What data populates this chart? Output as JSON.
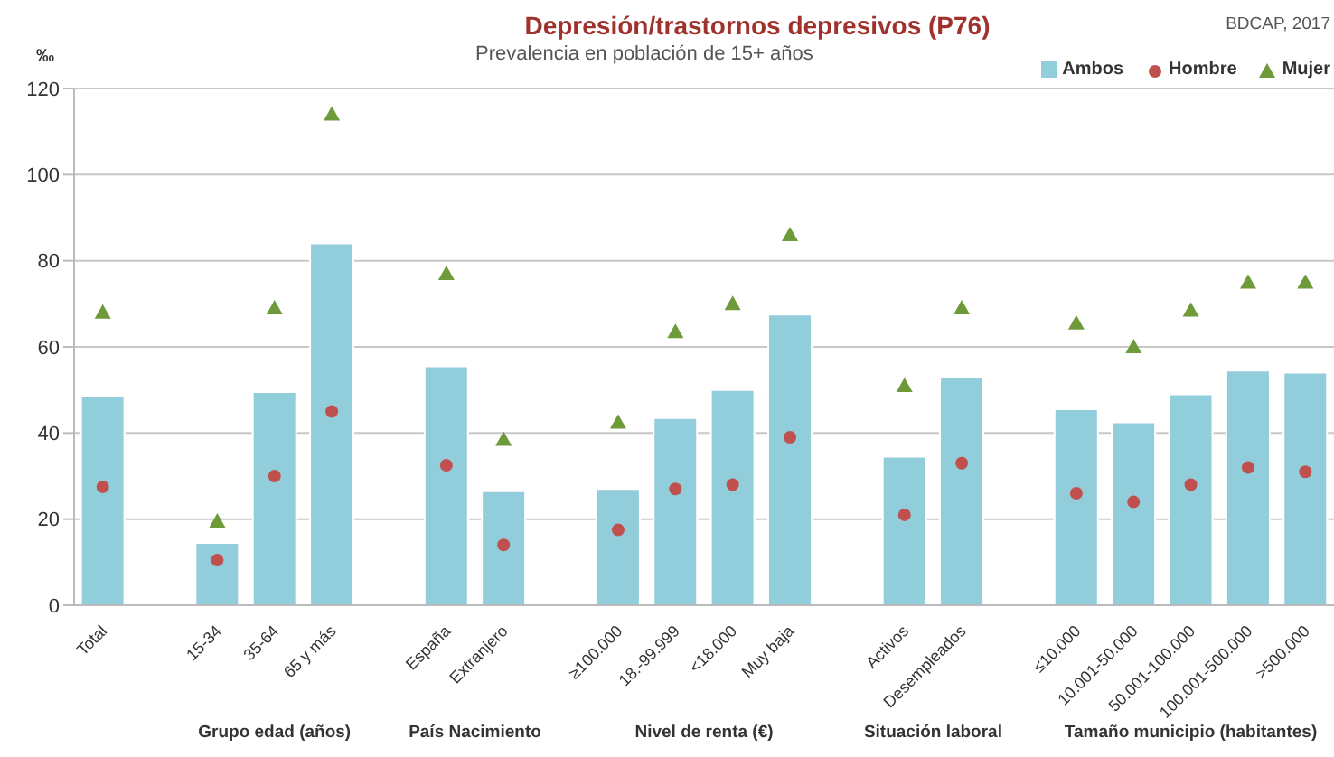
{
  "chart_data": {
    "type": "bar",
    "title": "Depresión/trastornos depresivos (P76)",
    "subtitle": "Prevalencia en población de 15+ años",
    "ylabel": "‰",
    "annotations": [
      "BDCAP, 2017",
      "Grupo edad (años)",
      "País Nacimiento",
      "Nivel de renta (€)",
      "Situación laboral",
      "Tamaño municipio (habitantes)"
    ],
    "categories": [
      "Total",
      null,
      "15-34",
      "35-64",
      "65 y más",
      null,
      "España",
      "Extranjero",
      null,
      "≥100.000",
      "18.-99.999",
      "<18.000",
      "Muy baja",
      null,
      "Activos",
      "Desempleados",
      null,
      "≤10.000",
      "10.001-50.000",
      "50.001-100.000",
      "100.001-500.000",
      ">500.000"
    ],
    "series": [
      {
        "name": "Ambos",
        "color": "#92cddc",
        "values": [
          48.5,
          null,
          14.5,
          49.5,
          84,
          null,
          55.5,
          26.5,
          null,
          27,
          43.5,
          50,
          67.5,
          null,
          34.5,
          53,
          null,
          45.5,
          42.5,
          49,
          54.5,
          54
        ]
      },
      {
        "name": "Hombre",
        "type": "scatter",
        "marker": "circle",
        "color": "#c0504d",
        "values": [
          27.5,
          null,
          10.5,
          30,
          45,
          null,
          32.5,
          14,
          null,
          17.5,
          27,
          28,
          39,
          null,
          21,
          33,
          null,
          26,
          24,
          28,
          32,
          31
        ]
      },
      {
        "name": "Mujer",
        "type": "scatter",
        "marker": "triangle",
        "color": "#6e9a3a",
        "values": [
          68,
          null,
          19.5,
          69,
          114,
          null,
          77,
          38.5,
          null,
          42.5,
          63.5,
          70,
          86,
          null,
          51,
          69,
          null,
          65.5,
          60,
          68.5,
          75,
          75
        ]
      }
    ],
    "ylim": [
      0,
      120
    ],
    "yticks": [
      0,
      20,
      40,
      60,
      80,
      100,
      120
    ],
    "grid": "y",
    "legend": "top right"
  }
}
